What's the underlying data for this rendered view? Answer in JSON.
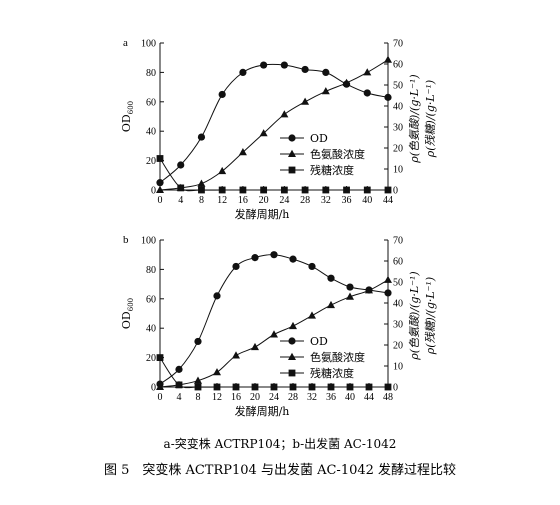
{
  "chart_data": [
    {
      "panel_label": "a",
      "type": "line",
      "x": [
        0,
        4,
        8,
        12,
        16,
        20,
        24,
        28,
        32,
        36,
        40,
        44
      ],
      "x_ticks": [
        "0",
        "4",
        "8",
        "12",
        "16",
        "20",
        "24",
        "28",
        "32",
        "36",
        "40",
        "44"
      ],
      "xlabel": "发酵周期/h",
      "ylabel_left": "OD600",
      "ylabel_left_main": "OD",
      "ylabel_left_sub": "600",
      "ylabel_right": "ρ(色氨酸)/(g·L⁻¹)",
      "ylabel_right2": "ρ(残糖)/(g·L⁻¹)",
      "ylim_left": [
        0,
        100
      ],
      "ylim_right": [
        0,
        70
      ],
      "y_ticks_left": [
        "0",
        "20",
        "40",
        "60",
        "80",
        "100"
      ],
      "y_ticks_right": [
        "0",
        "10",
        "20",
        "30",
        "40",
        "50",
        "60",
        "70"
      ],
      "legend_position": "center-right",
      "series": [
        {
          "name": "OD",
          "marker": "circle",
          "axis": "left",
          "values": [
            5,
            17,
            36,
            65,
            80,
            85,
            85,
            82,
            80,
            72,
            66,
            63
          ]
        },
        {
          "name": "色氨酸浓度",
          "marker": "triangle",
          "axis": "right",
          "values": [
            0,
            1,
            3,
            9,
            18,
            27,
            36,
            42,
            47,
            51,
            56,
            62
          ]
        },
        {
          "name": "残糖浓度",
          "marker": "square",
          "axis": "right",
          "values": [
            15,
            1,
            0,
            0,
            0,
            0,
            0,
            0,
            0,
            0,
            0,
            0
          ]
        }
      ]
    },
    {
      "panel_label": "b",
      "type": "line",
      "x": [
        0,
        4,
        8,
        12,
        16,
        20,
        24,
        28,
        32,
        36,
        40,
        44,
        48
      ],
      "x_ticks": [
        "0",
        "4",
        "8",
        "12",
        "16",
        "20",
        "24",
        "28",
        "32",
        "36",
        "40",
        "44",
        "48"
      ],
      "xlabel": "发酵周期/h",
      "ylabel_left": "OD600",
      "ylabel_left_main": "OD",
      "ylabel_left_sub": "600",
      "ylabel_right": "ρ(色氨酸)/(g·L⁻¹)",
      "ylabel_right2": "ρ(残糖)/(g·L⁻¹)",
      "ylim_left": [
        0,
        100
      ],
      "ylim_right": [
        0,
        70
      ],
      "y_ticks_left": [
        "0",
        "20",
        "40",
        "60",
        "80",
        "100"
      ],
      "y_ticks_right": [
        "0",
        "10",
        "20",
        "30",
        "40",
        "50",
        "60",
        "70"
      ],
      "legend_position": "center-right",
      "series": [
        {
          "name": "OD",
          "marker": "circle",
          "axis": "left",
          "values": [
            2,
            12,
            31,
            62,
            82,
            88,
            90,
            87,
            82,
            74,
            68,
            66,
            64
          ]
        },
        {
          "name": "色氨酸浓度",
          "marker": "triangle",
          "axis": "right",
          "values": [
            0,
            1,
            3,
            7,
            15,
            19,
            25,
            29,
            34,
            39,
            43,
            46,
            51
          ]
        },
        {
          "name": "残糖浓度",
          "marker": "square",
          "axis": "right",
          "values": [
            14,
            1,
            0,
            0,
            0,
            0,
            0,
            0,
            0,
            0,
            0,
            0,
            0
          ]
        }
      ]
    }
  ],
  "caption": {
    "sub": "a-突变株 ACTRP104；b-出发菌 AC-1042",
    "main": "图 5　突变株 ACTRP104 与出发菌 AC-1042 发酵过程比较"
  }
}
